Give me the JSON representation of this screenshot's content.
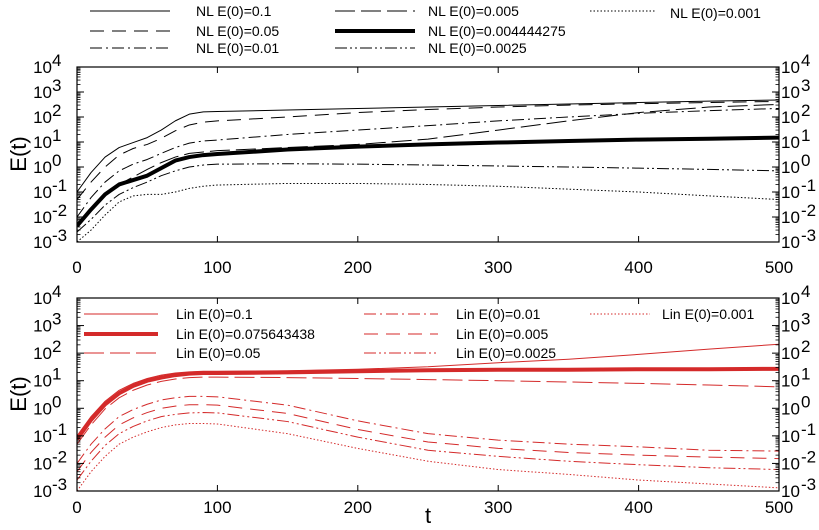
{
  "chart_data": [
    {
      "type": "line",
      "xlabel": "",
      "ylabel": "E(t)",
      "xlim": [
        0,
        500
      ],
      "ylim": [
        0.001,
        10000
      ],
      "yscale": "log",
      "x_ticks": [
        "0",
        "100",
        "200",
        "300",
        "400",
        "500"
      ],
      "y_ticks": [
        {
          "base": "10",
          "exp": "-3"
        },
        {
          "base": "10",
          "exp": "-2"
        },
        {
          "base": "10",
          "exp": "-1"
        },
        {
          "base": "10",
          "exp": "0"
        },
        {
          "base": "10",
          "exp": "1"
        },
        {
          "base": "10",
          "exp": "2"
        },
        {
          "base": "10",
          "exp": "3"
        },
        {
          "base": "10",
          "exp": "4"
        }
      ],
      "legend_position": "top-outside",
      "color": "#000000",
      "series": [
        {
          "name": "NL E(0)=0.1",
          "style": "solid",
          "width": 1,
          "x": [
            0,
            10,
            20,
            30,
            40,
            50,
            60,
            70,
            80,
            90,
            100,
            150,
            200,
            250,
            300,
            350,
            400,
            450,
            500
          ],
          "y": [
            0.1,
            0.6,
            2.5,
            6.0,
            9.5,
            15,
            30,
            70,
            130,
            160,
            165,
            190,
            220,
            250,
            290,
            330,
            380,
            430,
            480
          ]
        },
        {
          "name": "NL E(0)=0.05",
          "style": "dash",
          "width": 1,
          "x": [
            0,
            10,
            20,
            30,
            40,
            50,
            60,
            70,
            80,
            90,
            100,
            150,
            200,
            250,
            300,
            350,
            400,
            450,
            500
          ],
          "y": [
            0.05,
            0.25,
            1.0,
            3.0,
            5.5,
            8.0,
            14,
            28,
            48,
            62,
            70,
            100,
            150,
            200,
            250,
            300,
            340,
            380,
            420
          ]
        },
        {
          "name": "NL E(0)=0.01",
          "style": "dashdot",
          "width": 1,
          "x": [
            0,
            10,
            20,
            30,
            40,
            50,
            60,
            70,
            80,
            90,
            100,
            150,
            200,
            250,
            300,
            350,
            400,
            450,
            500
          ],
          "y": [
            0.01,
            0.06,
            0.25,
            0.7,
            1.3,
            2.0,
            3.5,
            6.0,
            9.0,
            11,
            12,
            20,
            30,
            45,
            70,
            100,
            140,
            180,
            220
          ]
        },
        {
          "name": "NL E(0)=0.005",
          "style": "longdash",
          "width": 1,
          "x": [
            0,
            10,
            20,
            30,
            40,
            50,
            60,
            70,
            80,
            90,
            100,
            150,
            200,
            250,
            300,
            350,
            400,
            450,
            500
          ],
          "y": [
            0.005,
            0.02,
            0.07,
            0.2,
            0.4,
            0.8,
            1.5,
            2.5,
            3.5,
            4.0,
            4.5,
            6.0,
            8.0,
            13,
            30,
            70,
            150,
            250,
            320
          ]
        },
        {
          "name": "NL E(0)=0.004444275",
          "style": "solid",
          "width": 4,
          "x": [
            0,
            10,
            20,
            30,
            40,
            50,
            60,
            70,
            80,
            90,
            100,
            150,
            200,
            250,
            300,
            350,
            400,
            450,
            500
          ],
          "y": [
            0.0044,
            0.02,
            0.08,
            0.2,
            0.3,
            0.45,
            0.9,
            1.8,
            2.5,
            3.0,
            3.3,
            5.0,
            6.5,
            8.0,
            9.5,
            11,
            12.5,
            13.5,
            15
          ]
        },
        {
          "name": "NL E(0)=0.0025",
          "style": "dashdotdot",
          "width": 1,
          "x": [
            0,
            10,
            20,
            30,
            40,
            50,
            60,
            70,
            80,
            90,
            100,
            150,
            200,
            250,
            300,
            350,
            400,
            450,
            500
          ],
          "y": [
            0.0025,
            0.008,
            0.03,
            0.08,
            0.15,
            0.25,
            0.45,
            0.7,
            1.0,
            1.2,
            1.3,
            1.35,
            1.3,
            1.2,
            1.1,
            1.0,
            0.9,
            0.8,
            0.7
          ]
        },
        {
          "name": "NL E(0)=0.001",
          "style": "dot",
          "width": 1,
          "x": [
            0,
            10,
            20,
            30,
            40,
            50,
            60,
            70,
            80,
            90,
            100,
            150,
            200,
            250,
            300,
            350,
            400,
            450,
            500
          ],
          "y": [
            0.001,
            0.003,
            0.012,
            0.04,
            0.07,
            0.08,
            0.08,
            0.1,
            0.14,
            0.17,
            0.19,
            0.22,
            0.22,
            0.2,
            0.17,
            0.13,
            0.1,
            0.07,
            0.05
          ]
        }
      ]
    },
    {
      "type": "line",
      "xlabel": "t",
      "ylabel": "E(t)",
      "xlim": [
        0,
        500
      ],
      "ylim": [
        0.001,
        10000
      ],
      "yscale": "log",
      "x_ticks": [
        "0",
        "100",
        "200",
        "300",
        "400",
        "500"
      ],
      "y_ticks": [
        {
          "base": "10",
          "exp": "-3"
        },
        {
          "base": "10",
          "exp": "-2"
        },
        {
          "base": "10",
          "exp": "-1"
        },
        {
          "base": "10",
          "exp": "0"
        },
        {
          "base": "10",
          "exp": "1"
        },
        {
          "base": "10",
          "exp": "2"
        },
        {
          "base": "10",
          "exp": "3"
        },
        {
          "base": "10",
          "exp": "4"
        }
      ],
      "legend_position": "inside-top",
      "color": "#d42a2a",
      "series": [
        {
          "name": "Lin E(0)=0.1",
          "style": "solid",
          "width": 1,
          "x": [
            0,
            10,
            20,
            30,
            40,
            50,
            60,
            70,
            80,
            90,
            100,
            150,
            200,
            250,
            300,
            350,
            400,
            450,
            500
          ],
          "y": [
            0.1,
            0.5,
            1.8,
            4.5,
            8.0,
            12,
            16,
            19,
            21,
            22,
            22,
            23,
            26,
            32,
            45,
            60,
            90,
            140,
            210
          ]
        },
        {
          "name": "Lin E(0)=0.075643438",
          "style": "solid",
          "width": 4,
          "x": [
            0,
            10,
            20,
            30,
            40,
            50,
            60,
            70,
            80,
            90,
            100,
            150,
            200,
            250,
            300,
            350,
            400,
            450,
            500
          ],
          "y": [
            0.075,
            0.38,
            1.4,
            3.5,
            6.5,
            10,
            13,
            16,
            18,
            19,
            19,
            20,
            22,
            24,
            25,
            25,
            26,
            26,
            27
          ]
        },
        {
          "name": "Lin E(0)=0.05",
          "style": "longdash",
          "width": 1,
          "x": [
            0,
            10,
            20,
            30,
            40,
            50,
            60,
            70,
            80,
            90,
            100,
            150,
            200,
            250,
            300,
            350,
            400,
            450,
            500
          ],
          "y": [
            0.05,
            0.25,
            0.95,
            2.4,
            4.5,
            7.0,
            9.5,
            11.5,
            13,
            13.5,
            13.5,
            13,
            12,
            11,
            10,
            9,
            8,
            7,
            6
          ]
        },
        {
          "name": "Lin E(0)=0.01",
          "style": "dashdot",
          "width": 1,
          "x": [
            0,
            10,
            20,
            30,
            40,
            50,
            60,
            70,
            80,
            90,
            100,
            150,
            200,
            250,
            300,
            350,
            400,
            450,
            500
          ],
          "y": [
            0.01,
            0.05,
            0.18,
            0.5,
            0.9,
            1.4,
            2.0,
            2.4,
            2.7,
            2.7,
            2.6,
            1.3,
            0.35,
            0.12,
            0.07,
            0.05,
            0.04,
            0.03,
            0.028
          ]
        },
        {
          "name": "Lin E(0)=0.005",
          "style": "dash",
          "width": 1,
          "x": [
            0,
            10,
            20,
            30,
            40,
            50,
            60,
            70,
            80,
            90,
            100,
            150,
            200,
            250,
            300,
            350,
            400,
            450,
            500
          ],
          "y": [
            0.005,
            0.025,
            0.09,
            0.25,
            0.45,
            0.7,
            1.0,
            1.2,
            1.35,
            1.35,
            1.3,
            0.65,
            0.17,
            0.06,
            0.035,
            0.025,
            0.02,
            0.017,
            0.015
          ]
        },
        {
          "name": "Lin E(0)=0.0025",
          "style": "dashdotdot",
          "width": 1,
          "x": [
            0,
            10,
            20,
            30,
            40,
            50,
            60,
            70,
            80,
            90,
            100,
            150,
            200,
            250,
            300,
            350,
            400,
            450,
            500
          ],
          "y": [
            0.0025,
            0.012,
            0.045,
            0.12,
            0.22,
            0.35,
            0.5,
            0.6,
            0.68,
            0.7,
            0.68,
            0.33,
            0.09,
            0.03,
            0.018,
            0.012,
            0.009,
            0.007,
            0.006
          ]
        },
        {
          "name": "Lin E(0)=0.001",
          "style": "dot",
          "width": 1,
          "x": [
            0,
            10,
            20,
            30,
            40,
            50,
            60,
            70,
            80,
            90,
            100,
            150,
            200,
            250,
            300,
            350,
            400,
            450,
            500
          ],
          "y": [
            0.001,
            0.005,
            0.018,
            0.05,
            0.09,
            0.14,
            0.2,
            0.25,
            0.28,
            0.28,
            0.27,
            0.12,
            0.035,
            0.012,
            0.006,
            0.004,
            0.0025,
            0.0018,
            0.0013
          ]
        }
      ]
    }
  ]
}
